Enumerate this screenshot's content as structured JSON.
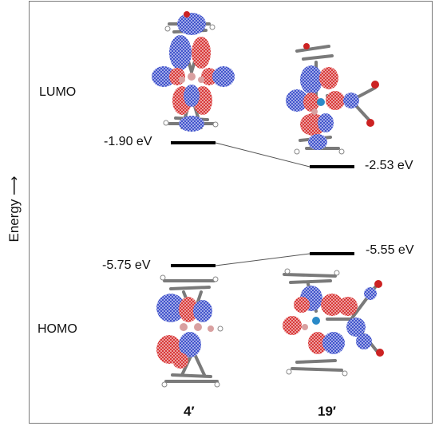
{
  "axis": {
    "label": "Energy"
  },
  "orbitals": {
    "lumo_label": "LUMO",
    "homo_label": "HOMO"
  },
  "compounds": [
    {
      "name": "4′",
      "lumo_energy": "-1.90 eV",
      "homo_energy": "-5.75 eV"
    },
    {
      "name": "19′",
      "lumo_energy": "-2.53 eV",
      "homo_energy": "-5.55 eV"
    }
  ],
  "colors": {
    "level_line": "#000000",
    "connector": "#555555",
    "lobe_positive": "#d42020",
    "lobe_negative": "#2a3fc4",
    "carbon": "#7a7a7a",
    "boron": "#d9a0a0",
    "hydrogen": "#ffffff",
    "oxygen": "#cc2222",
    "metal": "#2a8ac8"
  }
}
